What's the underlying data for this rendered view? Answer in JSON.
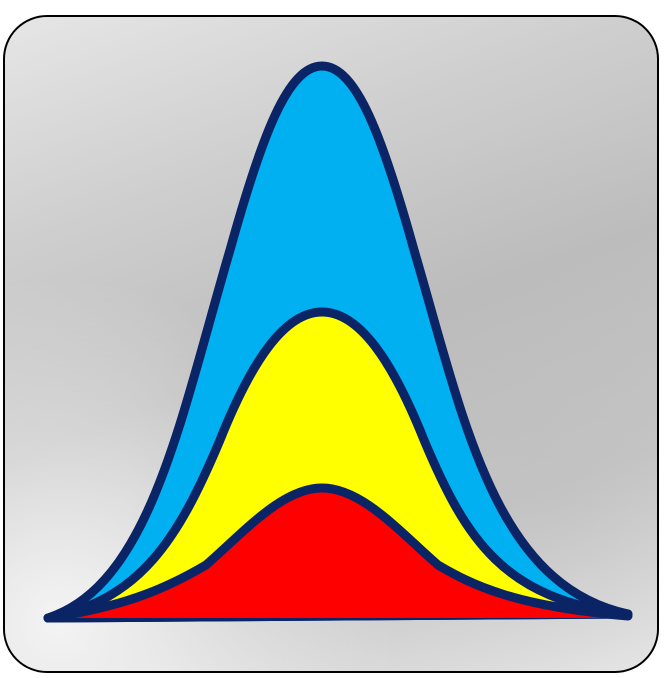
{
  "app_icon": {
    "icon": "bell-curves-distribution-icon",
    "colors": {
      "frame_border": "#000000",
      "outline": "#0b2466",
      "outer_curve_fill": "#00b0f0",
      "middle_curve_fill": "#ffff00",
      "inner_curve_fill": "#ff0000"
    }
  }
}
